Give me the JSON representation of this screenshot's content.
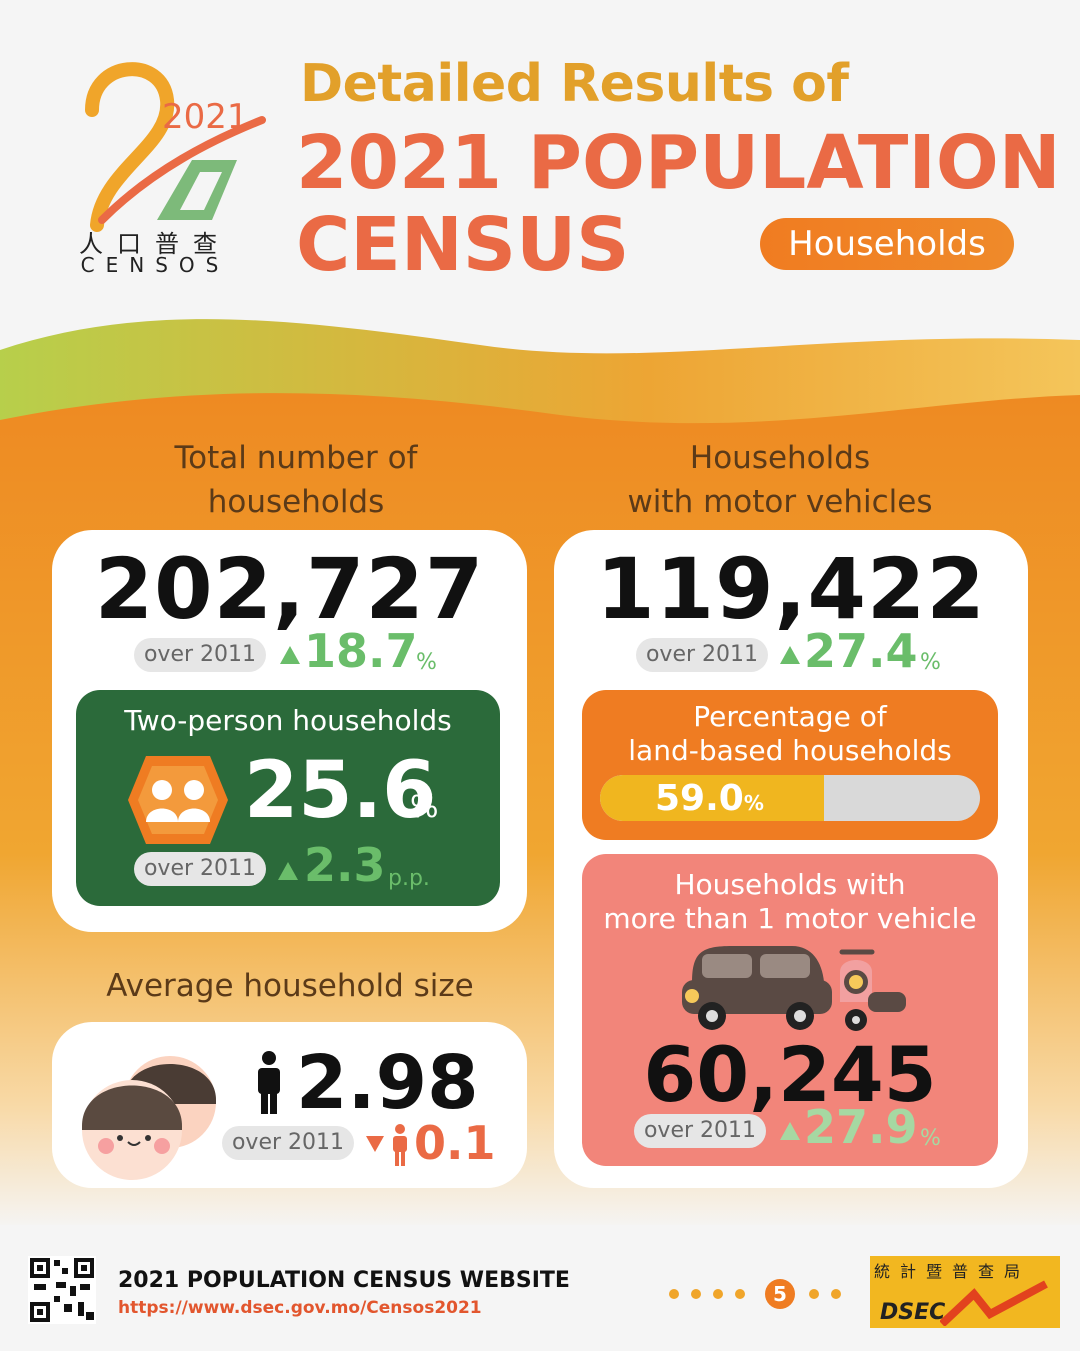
{
  "logo": {
    "year": "2021",
    "text_cn": "人口普查",
    "text_en": "CENSOS"
  },
  "header": {
    "subtitle": "Detailed Results of",
    "title_line1": "2021 POPULATION",
    "title_line2": "CENSUS",
    "topic": "Households"
  },
  "total_households": {
    "heading_line1": "Total number of",
    "heading_line2": "households",
    "value": "202,727",
    "compare_label": "over 2011",
    "change": "18.7",
    "change_unit": "%"
  },
  "two_person": {
    "label": "Two-person households",
    "value": "25.6",
    "unit": "%",
    "compare_label": "over 2011",
    "change": "2.3",
    "change_unit": "p.p."
  },
  "motor_vehicles": {
    "heading_line1": "Households",
    "heading_line2": "with motor vehicles",
    "value": "119,422",
    "compare_label": "over 2011",
    "change": "27.4",
    "change_unit": "%"
  },
  "land_based": {
    "label_line1": "Percentage of",
    "label_line2": "land-based households",
    "value": "59.0",
    "unit": "%",
    "fraction": 0.59
  },
  "multi_vehicle": {
    "label_line1": "Households with",
    "label_line2": "more than 1 motor vehicle",
    "value": "60,245",
    "compare_label": "over 2011",
    "change": "27.9",
    "change_unit": "%"
  },
  "avg_size": {
    "heading": "Average household size",
    "value": "2.98",
    "compare_label": "over 2011",
    "change": "0.1"
  },
  "footer": {
    "website_title": "2021 POPULATION CENSUS WEBSITE",
    "url": "https://www.dsec.gov.mo/Censos2021",
    "page_number": "5",
    "agency_cn": "統計暨普查局",
    "agency_en": "DSEC"
  },
  "colors": {
    "accent_orange": "#ef7c22",
    "title_orange": "#ea6a45",
    "gold": "#e2a02a",
    "green_box": "#2b6a3a",
    "up_green": "#6abd6a",
    "pink_box": "#f2857a"
  }
}
